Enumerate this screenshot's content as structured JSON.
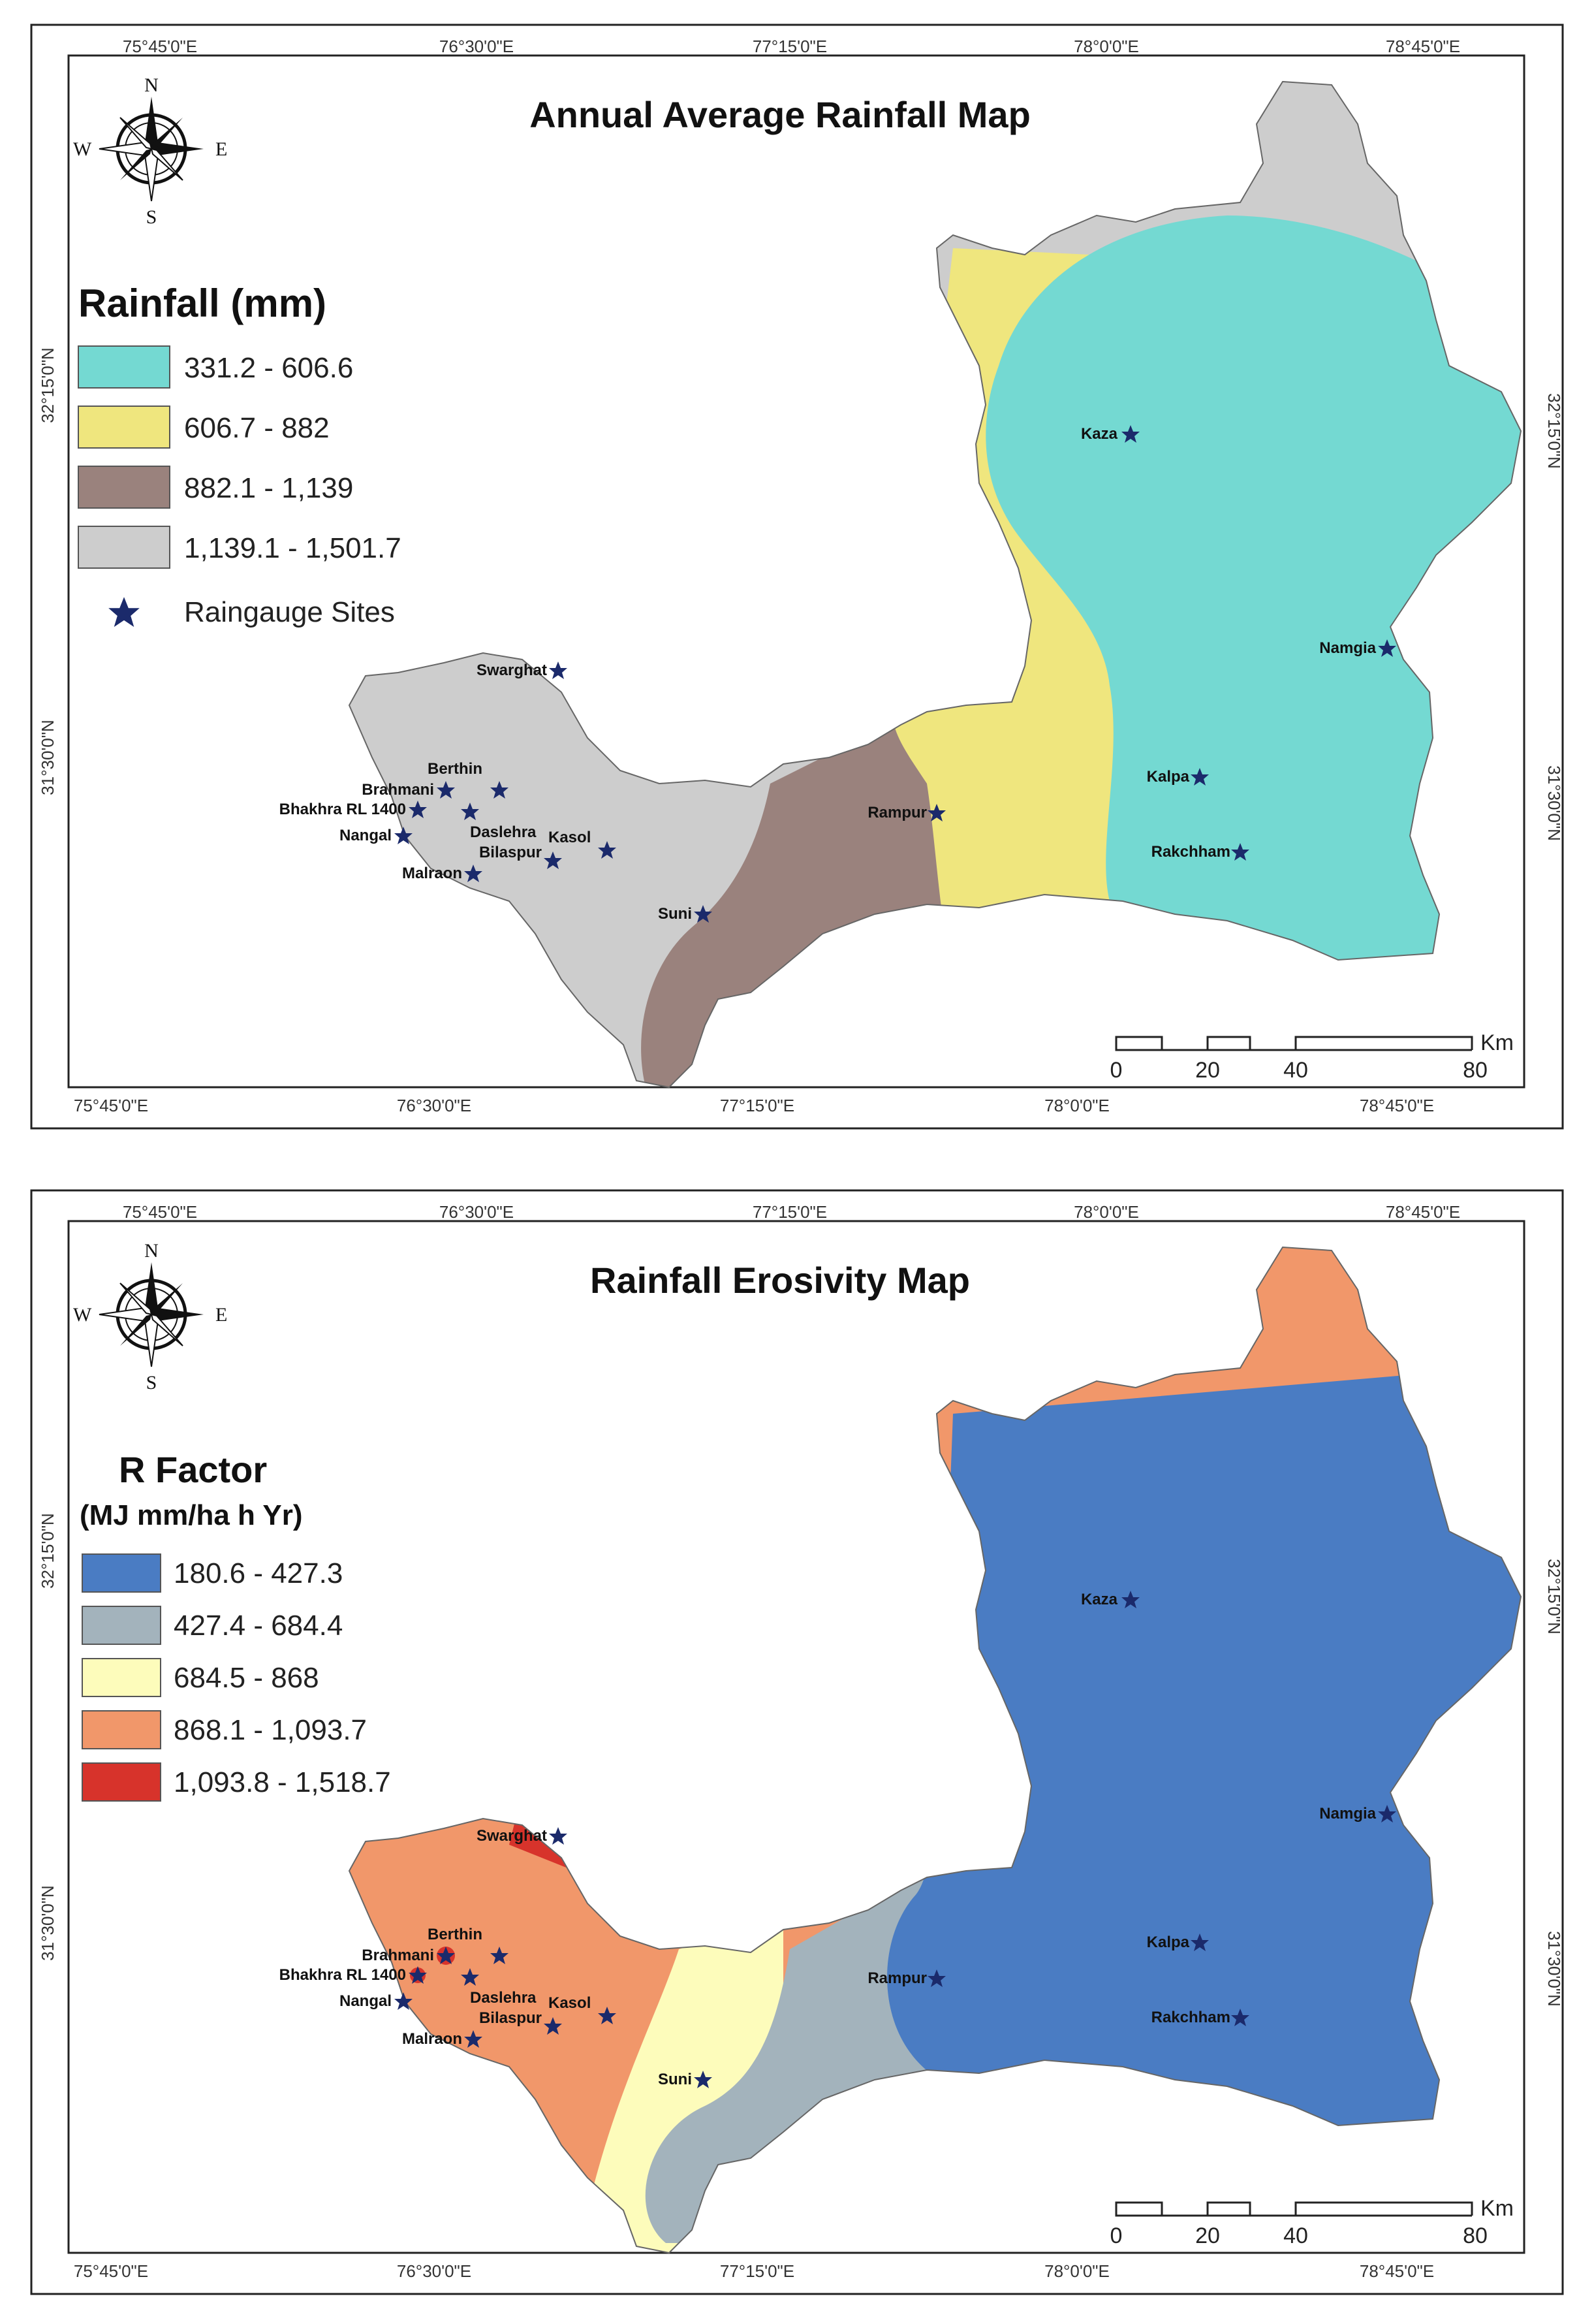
{
  "panels": [
    {
      "title": "Annual Average Rainfall Map",
      "legend_title": "Rainfall (mm)",
      "legend_subtitle": "",
      "classes": [
        {
          "label": "331.2 - 606.6",
          "color": "#74d9d2"
        },
        {
          "label": "606.7 - 882",
          "color": "#efe67e"
        },
        {
          "label": "882.1 - 1,139",
          "color": "#9a827d"
        },
        {
          "label": "1,139.1 - 1,501.7",
          "color": "#cdcdcd"
        }
      ],
      "sites_legend": "Raingauge Sites"
    },
    {
      "title": "Rainfall Erosivity Map",
      "legend_title": "R Factor",
      "legend_subtitle": "(MJ mm/ha h Yr)",
      "classes": [
        {
          "label": "180.6 - 427.3",
          "color": "#4a7cc3"
        },
        {
          "label": "427.4 - 684.4",
          "color": "#a3b3bc"
        },
        {
          "label": "684.5 - 868",
          "color": "#fdfcbb"
        },
        {
          "label": "868.1 - 1,093.7",
          "color": "#f1976a"
        },
        {
          "label": "1,093.8 - 1,518.7",
          "color": "#d7332b"
        }
      ],
      "sites_legend": ""
    }
  ],
  "longitudes_top": [
    "75°45'0\"E",
    "76°30'0\"E",
    "77°15'0\"E",
    "78°0'0\"E",
    "78°45'0\"E"
  ],
  "longitudes_bottom": [
    "75°45'0\"E",
    "76°30'0\"E",
    "77°15'0\"E",
    "78°0'0\"E",
    "78°45'0\"E"
  ],
  "latitudes_left": [
    "32°15'0\"N",
    "31°30'0\"N"
  ],
  "latitudes_right": [
    "32°15'0\"N",
    "31°30'0\"N"
  ],
  "compass": {
    "n": "N",
    "s": "S",
    "e": "E",
    "w": "W"
  },
  "scale": {
    "ticks": [
      "0",
      "20",
      "40",
      "80"
    ],
    "unit": "Km"
  },
  "sites": [
    "Kaza",
    "Namgia",
    "Kalpa",
    "Rakchham",
    "Rampur",
    "Suni",
    "Swarghat",
    "Berthin",
    "Brahmani",
    "Bhakhra RL 1400",
    "Nangal",
    "Daslehra",
    "Kasol",
    "Bilaspur",
    "Malraon"
  ],
  "colors": {
    "site_star": "#1b2a6b",
    "frame": "#222222",
    "outline": "#555555"
  }
}
